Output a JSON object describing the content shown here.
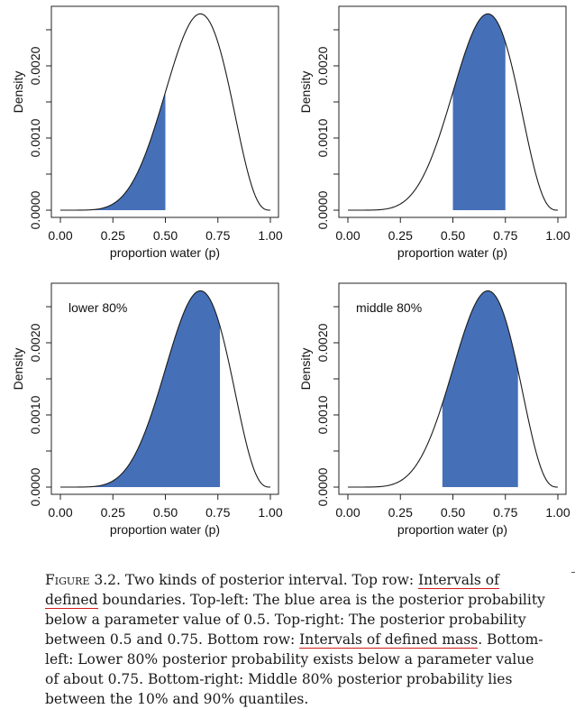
{
  "chart_data": [
    {
      "type": "area",
      "distribution": "beta(7,4)",
      "xlim": [
        0,
        1
      ],
      "ylim": [
        0,
        0.0027
      ],
      "xticks": [
        "0.00",
        "0.25",
        "0.50",
        "0.75",
        "1.00"
      ],
      "yticks": [
        "0.0000",
        "0.0010",
        "0.0020"
      ],
      "xlabel": "proportion water (p)",
      "ylabel": "Density",
      "shaded": [
        0,
        0.5
      ],
      "annotation": ""
    },
    {
      "type": "area",
      "distribution": "beta(7,4)",
      "xlim": [
        0,
        1
      ],
      "ylim": [
        0,
        0.0027
      ],
      "xticks": [
        "0.00",
        "0.25",
        "0.50",
        "0.75",
        "1.00"
      ],
      "yticks": [
        "0.0000",
        "0.0010",
        "0.0020"
      ],
      "xlabel": "proportion water (p)",
      "ylabel": "Density",
      "shaded": [
        0.5,
        0.75
      ],
      "annotation": ""
    },
    {
      "type": "area",
      "distribution": "beta(7,4)",
      "xlim": [
        0,
        1
      ],
      "ylim": [
        0,
        0.0027
      ],
      "xticks": [
        "0.00",
        "0.25",
        "0.50",
        "0.75",
        "1.00"
      ],
      "yticks": [
        "0.0000",
        "0.0010",
        "0.0020"
      ],
      "xlabel": "proportion water (p)",
      "ylabel": "Density",
      "shaded": [
        0,
        0.76
      ],
      "annotation": "lower 80%"
    },
    {
      "type": "area",
      "distribution": "beta(7,4)",
      "xlim": [
        0,
        1
      ],
      "ylim": [
        0,
        0.0027
      ],
      "xticks": [
        "0.00",
        "0.25",
        "0.50",
        "0.75",
        "1.00"
      ],
      "yticks": [
        "0.0000",
        "0.0010",
        "0.0020"
      ],
      "xlabel": "proportion water (p)",
      "ylabel": "Density",
      "shaded": [
        0.45,
        0.81
      ],
      "annotation": "middle 80%"
    }
  ],
  "colors": {
    "fill": "#4570b8",
    "line": "#1a1a1a",
    "underline": "#d21c1c"
  },
  "caption": {
    "lead": "Figure 3.2.",
    "p1": " Two kinds of posterior interval. Top row: ",
    "u1": "Intervals of defined",
    "p2": " boundaries. Top-left: The blue area is the posterior probability below a parameter value of 0.5. Top-right: The posterior probability between 0.5 and 0.75. Bottom row: ",
    "u2": "Intervals of defined mass",
    "p3": ". Bottom-left: Lower 80% posterior probability exists below a parameter value of about 0.75. Bottom-right: Middle 80% posterior probability lies between the 10% and 90% quantiles."
  }
}
